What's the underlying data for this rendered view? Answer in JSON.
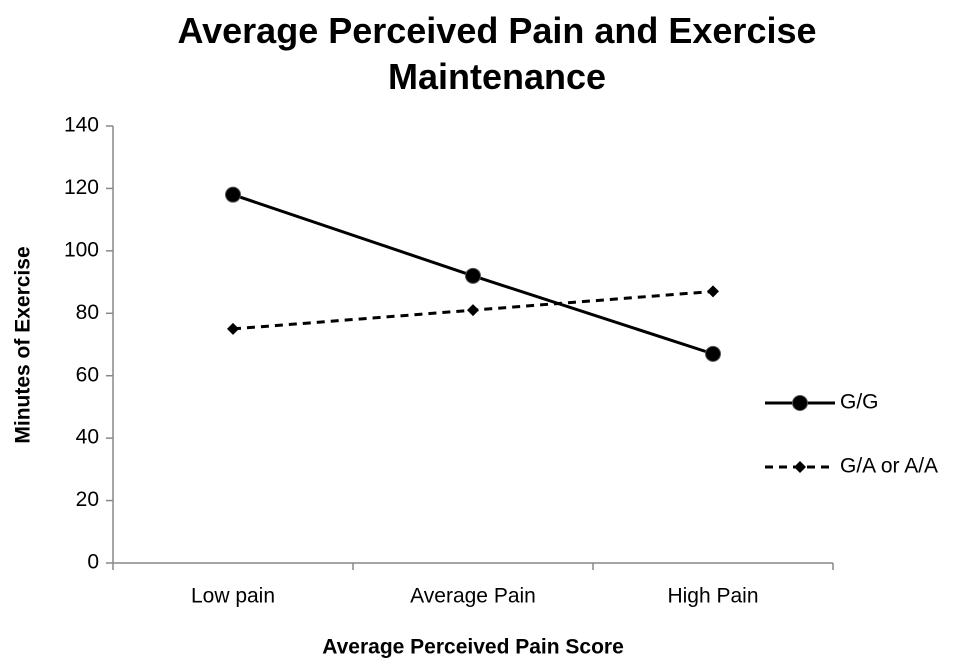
{
  "chart_data": {
    "type": "line",
    "title": "Average Perceived Pain and Exercise Maintenance",
    "x_label": "Average Perceived Pain Score",
    "y_label": "Minutes of Exercise",
    "categories": [
      "Low pain",
      "Average Pain",
      "High Pain"
    ],
    "series": [
      {
        "name": "G/G",
        "color": "#000000",
        "dash": "solid",
        "marker": "circle",
        "values": [
          118,
          92,
          67
        ]
      },
      {
        "name": "G/A or A/A",
        "color": "#000000",
        "dash": "dashed",
        "marker": "diamond",
        "values": [
          75,
          81,
          87
        ]
      }
    ],
    "ylim": [
      0,
      140
    ],
    "yticks": [
      0,
      20,
      40,
      60,
      80,
      100,
      120,
      140
    ],
    "grid": false,
    "legend": "right"
  }
}
